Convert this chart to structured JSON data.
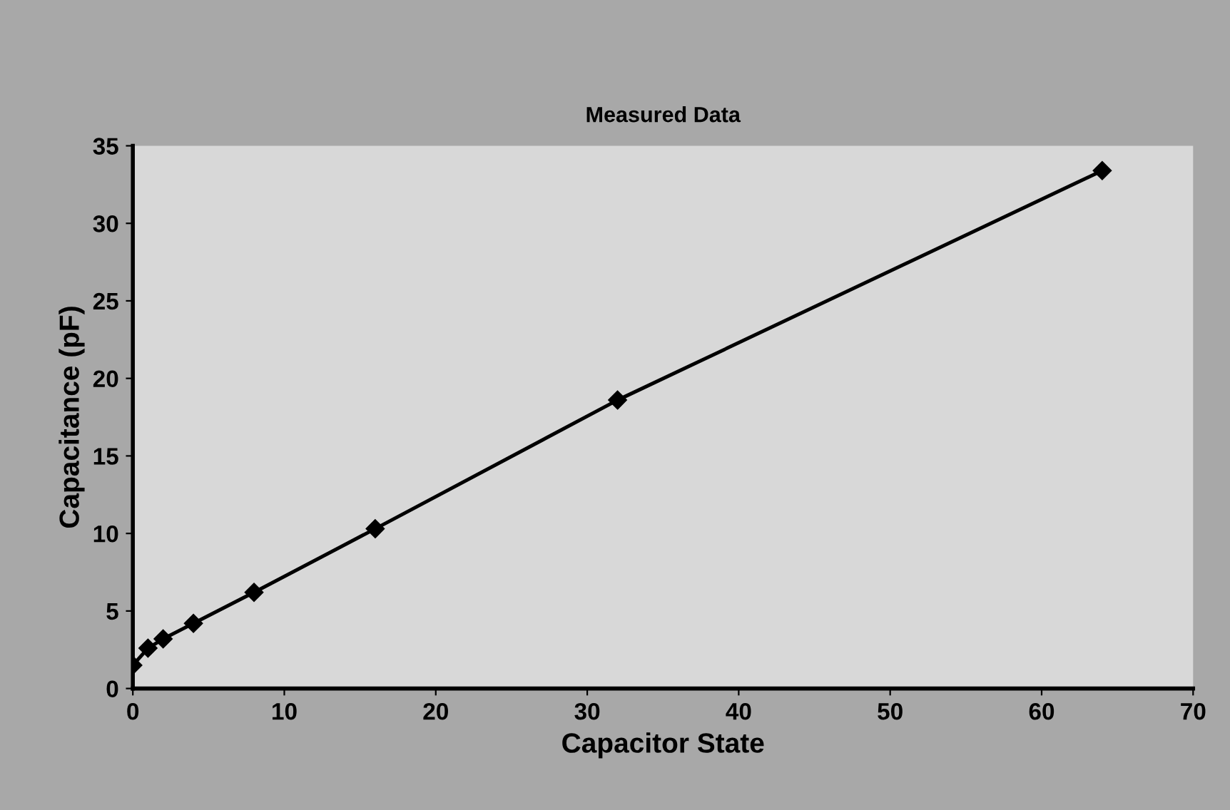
{
  "chart_data": {
    "type": "line",
    "title": "Measured Data",
    "xlabel": "Capacitor State",
    "ylabel": "Capacitance (pF)",
    "x": [
      0,
      1,
      2,
      4,
      8,
      16,
      32,
      64
    ],
    "series": [
      {
        "color": "#000000",
        "values": [
          1.5,
          2.6,
          3.2,
          4.2,
          6.2,
          10.3,
          18.6,
          33.4
        ]
      }
    ],
    "xlim": [
      0,
      70
    ],
    "xticks": [
      0,
      10,
      20,
      30,
      40,
      50,
      60,
      70
    ],
    "ylim": [
      0,
      35
    ],
    "yticks": [
      0,
      5,
      10,
      15,
      20,
      25,
      30,
      35
    ],
    "marker": "diamond",
    "line_style": "solid",
    "grid": false,
    "legend": false
  }
}
